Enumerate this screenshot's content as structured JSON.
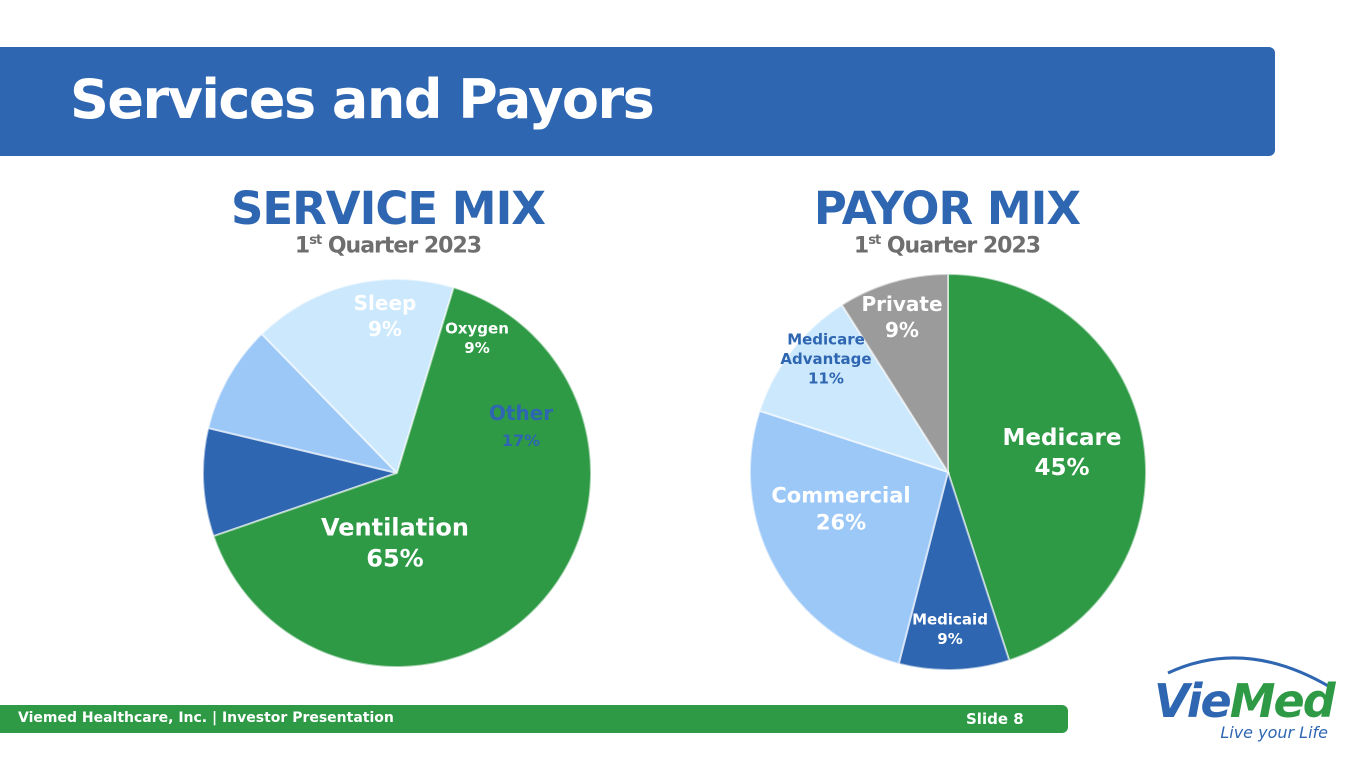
{
  "slide": {
    "title": "Services and Payors",
    "footer_text": "Viemed Healthcare, Inc. | Investor Presentation",
    "slide_number": "Slide 8"
  },
  "logo": {
    "name_part1": "Vie",
    "name_part2": "Med",
    "tagline": "Live your Life",
    "colors": {
      "blue": "#2e66b1",
      "green": "#2e9a45"
    }
  },
  "chart_data": [
    {
      "type": "pie",
      "title": "SERVICE MIX",
      "subtitle_ordinal": "1",
      "subtitle_suffix": "st",
      "subtitle_rest": " Quarter 2023",
      "slices": [
        {
          "label": "Sleep",
          "value": 9,
          "value_label": "9%",
          "color": "#2e66b1",
          "text_color": "#ffffff"
        },
        {
          "label": "Oxygen",
          "value": 9,
          "value_label": "9%",
          "color": "#9cc8f8",
          "text_color": "#ffffff"
        },
        {
          "label": "Other",
          "value": 17,
          "value_label": "17%",
          "color": "#cce8fd",
          "text_color": "#2e66b1"
        },
        {
          "label": "Ventilation",
          "value": 65,
          "value_label": "65%",
          "color": "#2e9a45",
          "text_color": "#ffffff"
        }
      ]
    },
    {
      "type": "pie",
      "title": "PAYOR MIX",
      "subtitle_ordinal": "1",
      "subtitle_suffix": "st",
      "subtitle_rest": " Quarter 2023",
      "slices": [
        {
          "label": "Medicare",
          "value": 45,
          "value_label": "45%",
          "color": "#2e9a45",
          "text_color": "#ffffff"
        },
        {
          "label": "Medicaid",
          "value": 9,
          "value_label": "9%",
          "color": "#2e66b1",
          "text_color": "#ffffff"
        },
        {
          "label": "Commercial",
          "value": 26,
          "value_label": "26%",
          "color": "#9cc8f8",
          "text_color": "#ffffff"
        },
        {
          "label": "Medicare Advantage",
          "value": 11,
          "value_label": "11%",
          "color": "#cce8fd",
          "text_color": "#2e66b1"
        },
        {
          "label": "Private",
          "value": 9,
          "value_label": "9%",
          "color": "#9b9b9b",
          "text_color": "#ffffff"
        }
      ]
    }
  ]
}
